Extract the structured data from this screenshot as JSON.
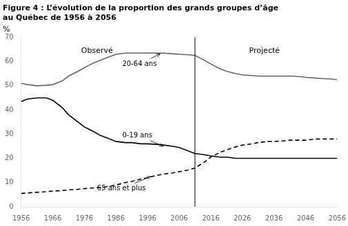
{
  "chart_data": {
    "type": "line",
    "title": [
      "Figure 4 : L’évolution de la proportion des grands groupes d’âge",
      "au Québec de 1956 à 2056"
    ],
    "ylabel": "%",
    "x": [
      1956,
      1958,
      1961,
      1964,
      1966,
      1969,
      1971,
      1974,
      1976,
      1979,
      1981,
      1984,
      1986,
      1989,
      1991,
      1994,
      1996,
      1999,
      2001,
      2004,
      2006,
      2009,
      2011,
      2014,
      2016,
      2019,
      2021,
      2024,
      2026,
      2029,
      2031,
      2034,
      2036,
      2039,
      2041,
      2044,
      2046,
      2049,
      2051,
      2054,
      2056
    ],
    "series": [
      {
        "name": "20-64 ans",
        "color": "#666666",
        "line_style": "solid",
        "values": [
          51.0,
          50.5,
          50.0,
          50.2,
          50.5,
          52.0,
          54.0,
          56.0,
          57.5,
          59.5,
          60.5,
          62.0,
          63.0,
          63.5,
          63.5,
          63.5,
          63.5,
          63.5,
          63.5,
          63.2,
          63.0,
          62.8,
          62.5,
          60.5,
          59.0,
          57.0,
          56.0,
          55.0,
          54.5,
          54.2,
          54.0,
          54.0,
          54.0,
          54.0,
          54.0,
          53.8,
          53.5,
          53.2,
          53.0,
          52.8,
          52.5
        ]
      },
      {
        "name": "0-19 ans",
        "color": "#000000",
        "line_style": "solid",
        "values": [
          43.5,
          44.5,
          45.0,
          45.0,
          44.0,
          41.0,
          38.0,
          35.0,
          33.0,
          31.0,
          29.5,
          28.0,
          27.0,
          26.5,
          26.5,
          26.0,
          26.0,
          25.8,
          25.5,
          25.0,
          24.5,
          23.0,
          22.0,
          21.5,
          21.0,
          20.5,
          20.5,
          20.0,
          20.0,
          20.0,
          20.0,
          20.0,
          20.0,
          20.0,
          20.0,
          20.0,
          20.0,
          20.0,
          20.0,
          20.0,
          20.0
        ]
      },
      {
        "name": "65 ans et plus",
        "color": "#000000",
        "line_style": "dashed",
        "values": [
          5.5,
          5.7,
          6.0,
          6.2,
          6.5,
          6.7,
          7.0,
          7.2,
          7.5,
          7.8,
          8.0,
          8.5,
          9.0,
          10.0,
          10.5,
          11.5,
          12.0,
          13.0,
          13.5,
          14.0,
          14.5,
          15.2,
          16.0,
          18.5,
          20.5,
          22.5,
          23.5,
          24.8,
          25.5,
          26.0,
          26.5,
          27.0,
          27.0,
          27.2,
          27.5,
          27.5,
          27.5,
          28.0,
          28.0,
          28.0,
          28.0
        ]
      }
    ],
    "vline": 2011,
    "xlim": [
      1956,
      2056
    ],
    "xticks": [
      1956,
      1966,
      1976,
      1986,
      1996,
      2006,
      2016,
      2026,
      2036,
      2046,
      2056
    ],
    "ylim": [
      0,
      70
    ],
    "yticks": [
      0,
      10,
      20,
      30,
      40,
      50,
      60,
      70
    ],
    "grid": false,
    "annotations": [
      {
        "text": "Observé",
        "xy": [
          1980,
          66.0
        ]
      },
      {
        "text": "Projecté",
        "xy": [
          2033,
          66.0
        ]
      },
      {
        "text": "20-64 ans",
        "xy": [
          2000,
          63.2
        ],
        "xytext": [
          1988,
          59.0
        ]
      },
      {
        "text": "0-19 ans",
        "xy": [
          2001,
          25.0
        ],
        "xytext": [
          1988,
          29.5
        ]
      },
      {
        "text": "65 ans et plus",
        "xy": [
          1997,
          12.5
        ],
        "xytext": [
          1980,
          7.5
        ]
      }
    ]
  }
}
